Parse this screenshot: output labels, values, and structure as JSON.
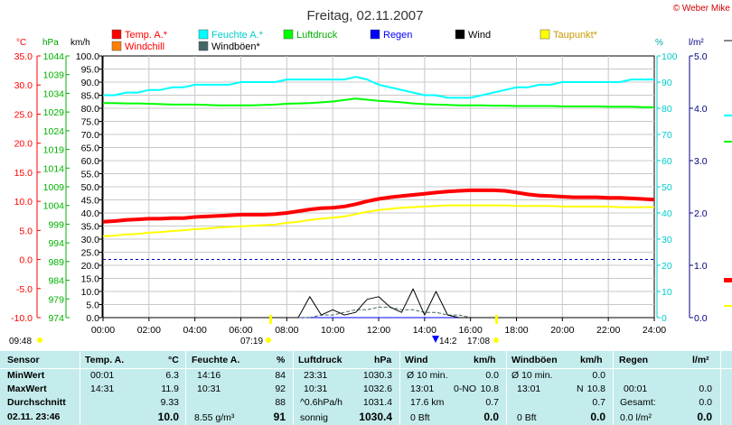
{
  "header": {
    "title": "Freitag, 02.11.2007",
    "copyright": "© Weber Mike"
  },
  "legend": [
    {
      "label": "Temp. A.*",
      "color": "#ff0000",
      "text_color": "#ff0000"
    },
    {
      "label": "Feuchte A.*",
      "color": "#00ffff",
      "text_color": "#00cccc"
    },
    {
      "label": "Luftdruck",
      "color": "#00ff00",
      "text_color": "#00b000"
    },
    {
      "label": "Regen",
      "color": "#0000ff",
      "text_color": "#0000ff"
    },
    {
      "label": "Wind",
      "color": "#000000",
      "text_color": "#000000"
    },
    {
      "label": "Taupunkt*",
      "color": "#ffff00",
      "text_color": "#cc9900"
    },
    {
      "label": "Windchill",
      "color": "#ff8000",
      "text_color": "#ff0000"
    },
    {
      "label": "Windböen*",
      "color": "#446666",
      "text_color": "#000000"
    }
  ],
  "axis_titles": {
    "celsius": "°C",
    "hpa": "hPa",
    "kmh": "km/h",
    "percent": "%",
    "rain": "l/m²"
  },
  "sun_times": {
    "left": "09:48",
    "sunrise": "07:19",
    "sunset": "17:08",
    "marker": "14:2"
  },
  "chart_data": {
    "type": "line",
    "x": [
      "00:00",
      "00:30",
      "01:00",
      "01:30",
      "02:00",
      "02:30",
      "03:00",
      "03:30",
      "04:00",
      "04:30",
      "05:00",
      "05:30",
      "06:00",
      "06:30",
      "07:00",
      "07:30",
      "08:00",
      "08:30",
      "09:00",
      "09:30",
      "10:00",
      "10:30",
      "11:00",
      "11:30",
      "12:00",
      "12:30",
      "13:00",
      "13:30",
      "14:00",
      "14:30",
      "15:00",
      "15:30",
      "16:00",
      "16:30",
      "17:00",
      "17:30",
      "18:00",
      "18:30",
      "19:00",
      "19:30",
      "20:00",
      "20:30",
      "21:00",
      "21:30",
      "22:00",
      "22:30",
      "23:00",
      "23:30",
      "24:00"
    ],
    "xticks": [
      "00:00",
      "02:00",
      "04:00",
      "06:00",
      "08:00",
      "10:00",
      "12:00",
      "14:00",
      "16:00",
      "18:00",
      "20:00",
      "22:00",
      "24:00"
    ],
    "axes": {
      "celsius": {
        "min": -10,
        "max": 35,
        "ticks": [
          "35.0",
          "30.0",
          "25.0",
          "20.0",
          "15.0",
          "10.0",
          "5.0",
          "0.0",
          "-5.0",
          "-10.0"
        ]
      },
      "hpa": {
        "min": 974,
        "max": 1044,
        "ticks": [
          "1044",
          "1039",
          "1034",
          "1029",
          "1024",
          "1019",
          "1014",
          "1009",
          "1004",
          "999",
          "994",
          "989",
          "984",
          "979",
          "974"
        ]
      },
      "kmh": {
        "min": 0,
        "max": 100,
        "ticks": [
          "100.0",
          "95.0",
          "90.0",
          "85.0",
          "80.0",
          "75.0",
          "70.0",
          "65.0",
          "60.0",
          "55.0",
          "50.0",
          "45.0",
          "40.0",
          "35.0",
          "30.0",
          "25.0",
          "20.0",
          "15.0",
          "10.0",
          "5.0",
          "0.0"
        ]
      },
      "percent": {
        "min": 0,
        "max": 100,
        "ticks": [
          "100",
          "90",
          "80",
          "70",
          "60",
          "50",
          "40",
          "30",
          "20",
          "10",
          "0"
        ]
      },
      "rain": {
        "min": 0,
        "max": 5,
        "ticks": [
          "5.0",
          "4.0",
          "3.0",
          "2.0",
          "1.0",
          "0.0"
        ]
      }
    },
    "series": [
      {
        "name": "Temp. A.*",
        "axis": "celsius",
        "color": "#ff0000",
        "values": [
          6.5,
          6.6,
          6.8,
          6.9,
          7.0,
          7.0,
          7.1,
          7.1,
          7.3,
          7.4,
          7.5,
          7.6,
          7.7,
          7.7,
          7.7,
          7.8,
          8.0,
          8.3,
          8.6,
          8.8,
          8.9,
          9.1,
          9.5,
          10.0,
          10.4,
          10.7,
          10.9,
          11.1,
          11.3,
          11.5,
          11.7,
          11.8,
          11.9,
          11.9,
          11.9,
          11.8,
          11.5,
          11.2,
          11.0,
          10.9,
          10.8,
          10.7,
          10.7,
          10.7,
          10.6,
          10.6,
          10.5,
          10.4,
          10.3
        ]
      },
      {
        "name": "Windchill",
        "axis": "celsius",
        "color": "#ff8000",
        "values": [
          6.5,
          6.6,
          6.8,
          6.9,
          7.0,
          7.0,
          7.1,
          7.1,
          7.3,
          7.4,
          7.5,
          7.6,
          7.7,
          7.7,
          7.7,
          7.8,
          8.0,
          8.3,
          8.6,
          8.8,
          8.9,
          9.1,
          9.5,
          10.0,
          10.4,
          10.7,
          10.9,
          11.1,
          11.3,
          11.5,
          11.7,
          11.8,
          11.9,
          11.9,
          11.9,
          11.8,
          11.5,
          11.2,
          11.0,
          10.9,
          10.8,
          10.7,
          10.7,
          10.7,
          10.6,
          10.6,
          10.5,
          10.4,
          10.3
        ]
      },
      {
        "name": "Feuchte A.*",
        "axis": "percent",
        "color": "#00ffff",
        "values": [
          85,
          85,
          86,
          86,
          87,
          87,
          88,
          88,
          89,
          89,
          89,
          89,
          90,
          90,
          90,
          90,
          91,
          91,
          91,
          91,
          91,
          91,
          92,
          91,
          89,
          88,
          87,
          86,
          85,
          85,
          84,
          84,
          84,
          85,
          86,
          87,
          88,
          88,
          89,
          89,
          90,
          90,
          90,
          90,
          90,
          90,
          91,
          91,
          91
        ]
      },
      {
        "name": "Luftdruck",
        "axis": "hpa",
        "color": "#00ff00",
        "values": [
          1031.4,
          1031.4,
          1031.3,
          1031.3,
          1031.2,
          1031.1,
          1031.0,
          1031.0,
          1031.0,
          1030.9,
          1030.8,
          1030.8,
          1030.8,
          1030.8,
          1030.9,
          1031.0,
          1031.2,
          1031.3,
          1031.4,
          1031.6,
          1031.8,
          1032.2,
          1032.6,
          1032.3,
          1032.0,
          1031.8,
          1031.6,
          1031.3,
          1031.1,
          1031.0,
          1030.9,
          1030.8,
          1030.8,
          1030.8,
          1030.7,
          1030.7,
          1030.6,
          1030.6,
          1030.6,
          1030.6,
          1030.5,
          1030.5,
          1030.5,
          1030.5,
          1030.4,
          1030.4,
          1030.4,
          1030.3,
          1030.3
        ]
      },
      {
        "name": "Taupunkt*",
        "axis": "celsius",
        "color": "#ffff00",
        "values": [
          4.0,
          4.1,
          4.3,
          4.4,
          4.6,
          4.7,
          4.9,
          5.0,
          5.2,
          5.3,
          5.5,
          5.6,
          5.7,
          5.8,
          5.9,
          6.0,
          6.3,
          6.5,
          6.8,
          7.0,
          7.2,
          7.4,
          7.8,
          8.2,
          8.5,
          8.7,
          8.9,
          9.0,
          9.1,
          9.2,
          9.3,
          9.3,
          9.3,
          9.3,
          9.3,
          9.3,
          9.2,
          9.2,
          9.2,
          9.2,
          9.1,
          9.1,
          9.1,
          9.1,
          9.1,
          9.0,
          9.0,
          9.0,
          9.0
        ]
      },
      {
        "name": "Wind",
        "axis": "kmh",
        "color": "#000000",
        "values": [
          0,
          0,
          0,
          0,
          0,
          0,
          0,
          0,
          0,
          0,
          0,
          0,
          0,
          0,
          0,
          0,
          0,
          0,
          8,
          1,
          3,
          1,
          2,
          7,
          8,
          4,
          2,
          11,
          1,
          10,
          1,
          0,
          0,
          0,
          0,
          0,
          0,
          0,
          0,
          0,
          0,
          0,
          0,
          0,
          0,
          0,
          0,
          0,
          0
        ]
      },
      {
        "name": "Windböen*",
        "axis": "kmh",
        "color": "#446666",
        "values": [
          0,
          0,
          0,
          0,
          0,
          0,
          0,
          0,
          0,
          0,
          0,
          0,
          0,
          0,
          0,
          0,
          0,
          0,
          0,
          1,
          1,
          2,
          3,
          3,
          4,
          4,
          3,
          3,
          2,
          2,
          1,
          1,
          0,
          0,
          0,
          0,
          0,
          0,
          0,
          0,
          0,
          0,
          0,
          0,
          0,
          0,
          0,
          0,
          0
        ]
      },
      {
        "name": "Regen",
        "axis": "rain",
        "color": "#0000ff",
        "values": [
          0,
          0,
          0,
          0,
          0,
          0,
          0,
          0,
          0,
          0,
          0,
          0,
          0,
          0,
          0,
          0,
          0,
          0,
          0,
          0,
          0,
          0,
          0,
          0,
          0,
          0,
          0,
          0,
          0,
          0,
          0,
          0,
          0,
          0,
          0,
          0,
          0,
          0,
          0,
          0,
          0,
          0,
          0,
          0,
          0,
          0,
          0,
          0,
          0
        ]
      }
    ],
    "grid": true
  },
  "table": {
    "headers": {
      "sensor": "Sensor",
      "temp": "Temp. A.",
      "temp_unit": "°C",
      "hum": "Feuchte A.",
      "hum_unit": "%",
      "press": "Luftdruck",
      "press_unit": "hPa",
      "wind": "Wind",
      "wind_unit": "km/h",
      "gust": "Windböen",
      "gust_unit": "km/h",
      "rain": "Regen",
      "rain_unit": "l/m²"
    },
    "row_labels": {
      "min": "MinWert",
      "max": "MaxWert",
      "avg": "Durchschnitt",
      "now": "02.11. 23:46"
    },
    "temp": {
      "min_time": "00:01",
      "min": "6.3",
      "max_time": "14:31",
      "max": "11.9",
      "avg": "9.33",
      "now": "10.0"
    },
    "hum": {
      "min_time": "14:16",
      "min": "84",
      "max_time": "10:31",
      "max": "92",
      "avg": "88",
      "now_extra": "8.55 g/m³",
      "now": "91"
    },
    "press": {
      "min_time": "23:31",
      "min": "1030.3",
      "max_time": "10:31",
      "max": "1032.6",
      "avg_label": "^0.6hPa/h",
      "avg": "1031.4",
      "now_label": "sonnig",
      "now": "1030.4"
    },
    "wind": {
      "min_label": "Ø 10 min.",
      "min": "0.0",
      "max_time": "13:01",
      "max_dir": "0-NO",
      "max": "10.8",
      "avg_label": "17.6 km",
      "avg": "0.7",
      "now_label": "0 Bft",
      "now": "0.0"
    },
    "gust": {
      "min_label": "Ø 10 min.",
      "min": "0.0",
      "max_time": "13:01",
      "max_dir": "N",
      "max": "10.8",
      "avg": "0.7",
      "now_label": "0 Bft",
      "now": "0.0"
    },
    "rain": {
      "max_time": "00:01",
      "max": "0.0",
      "avg_label": "Gesamt:",
      "avg": "0.0",
      "now_label": "0.0 l/m²",
      "now": "0.0"
    }
  }
}
